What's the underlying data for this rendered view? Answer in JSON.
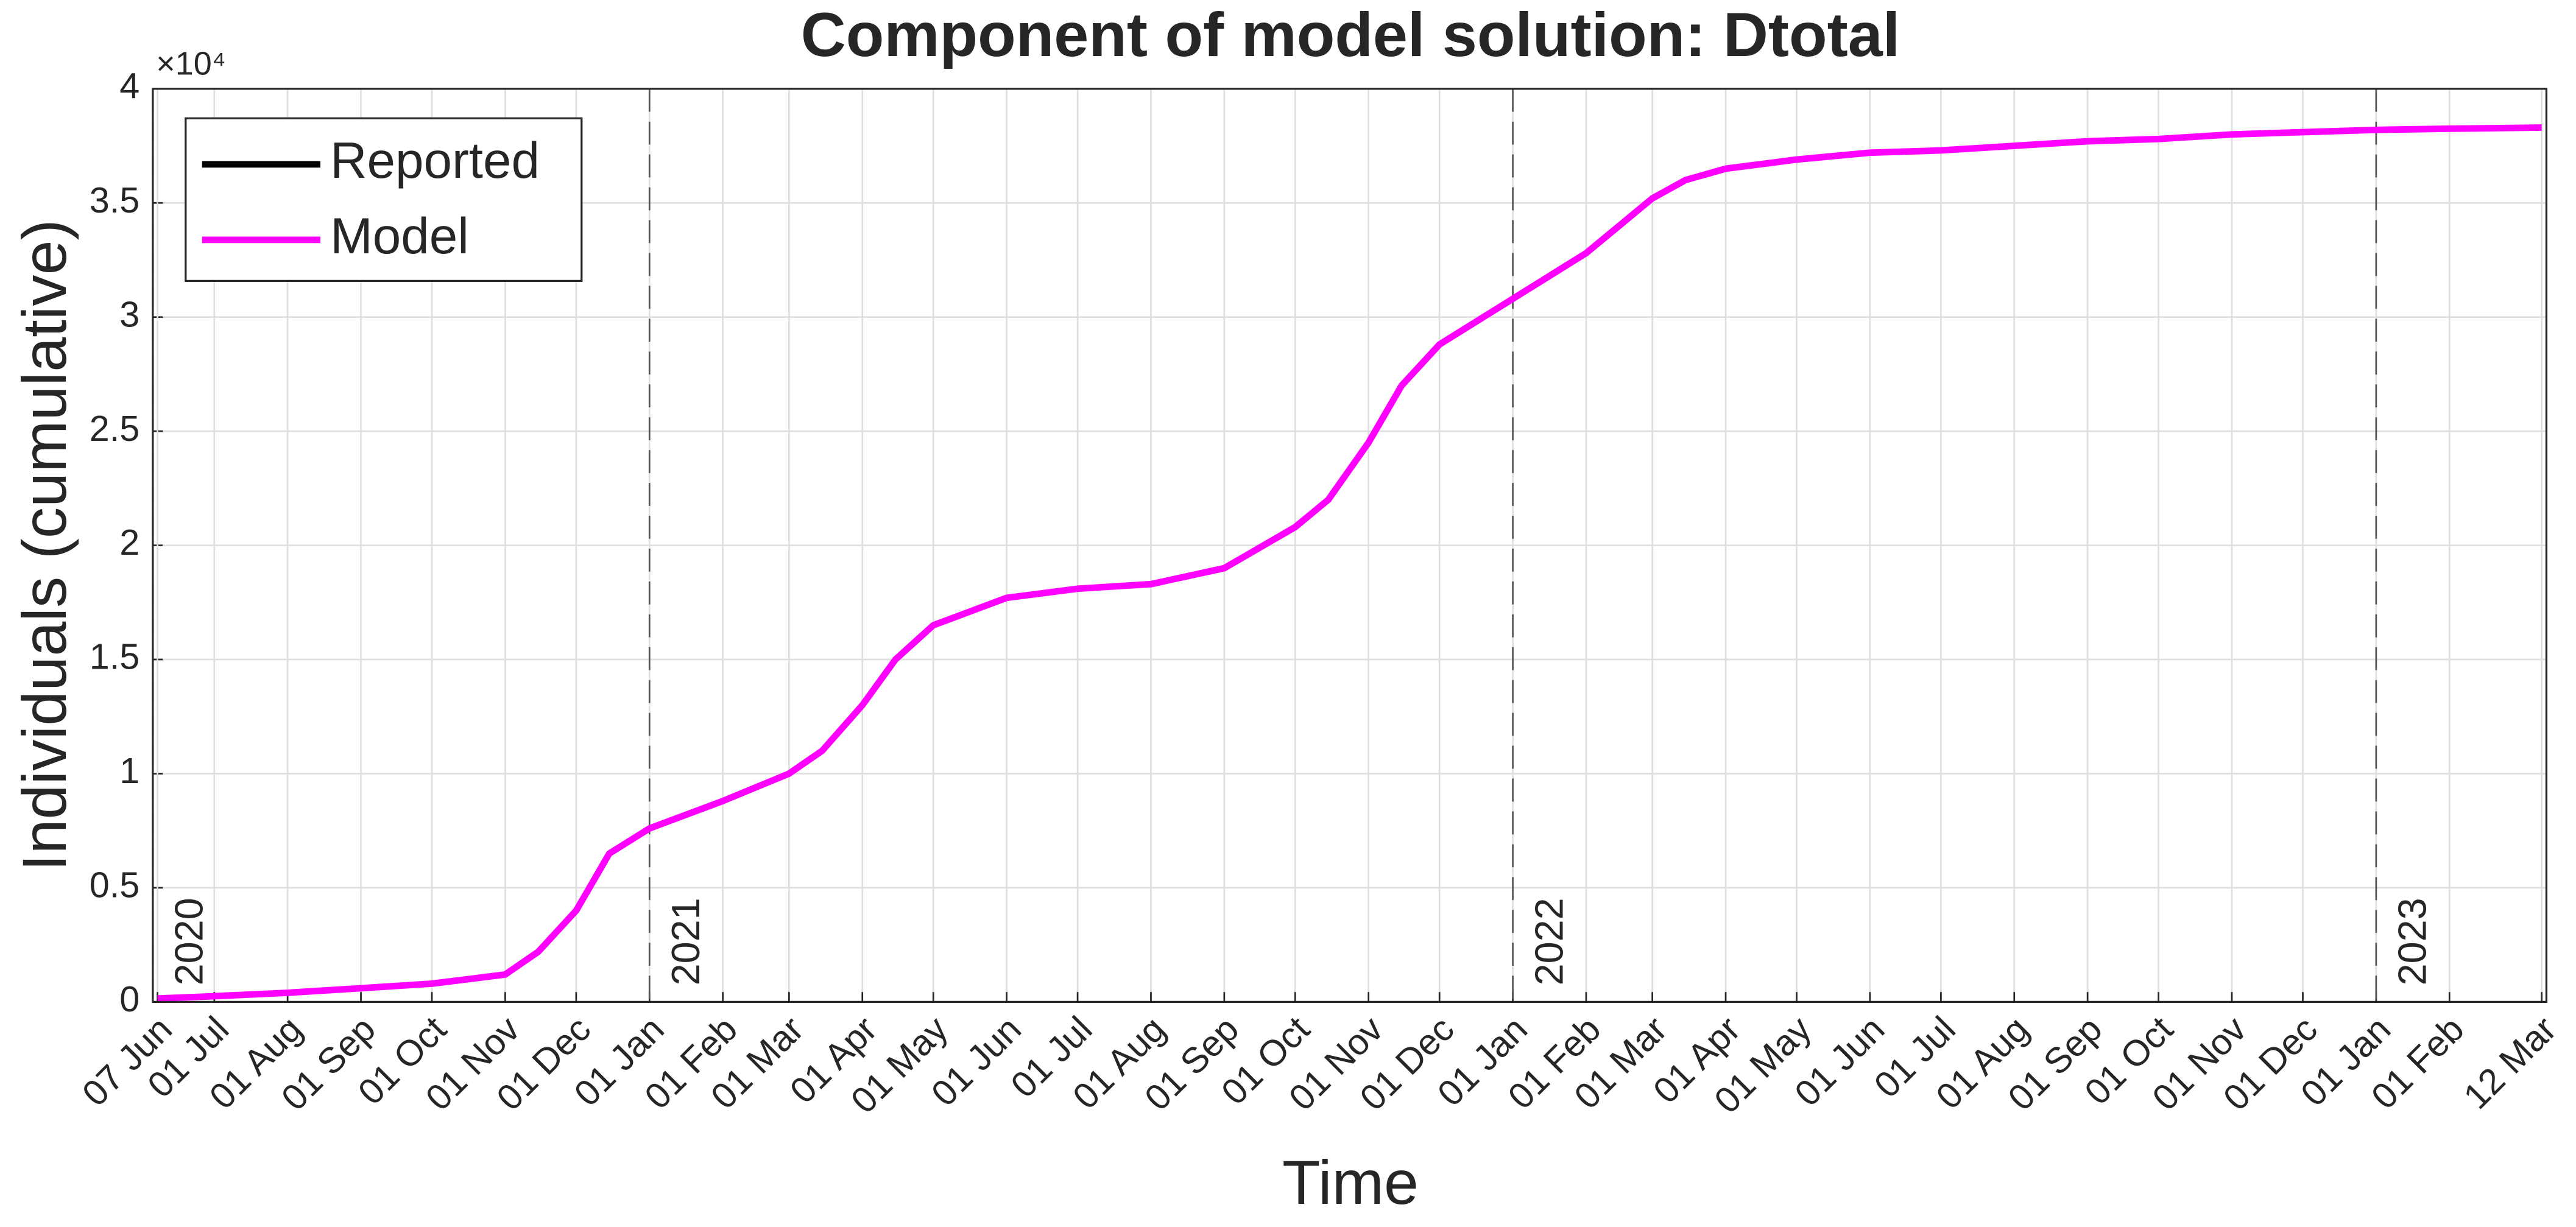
{
  "chart_data": {
    "type": "line",
    "title": "Component of model solution: Dtotal",
    "xlabel": "Time",
    "ylabel": "Individuals (cumulative)",
    "y_exponent_label": "×10⁴",
    "grid": true,
    "legend_position": "upper left",
    "xlim": [
      "2020-06-05",
      "2023-03-14"
    ],
    "ylim": [
      0,
      40000
    ],
    "yticks": [
      0,
      {
        "value": 5000,
        "label": "0.5"
      },
      {
        "value": 10000,
        "label": "1"
      },
      {
        "value": 15000,
        "label": "1.5"
      },
      {
        "value": 20000,
        "label": "2"
      },
      {
        "value": 25000,
        "label": "2.5"
      },
      {
        "value": 30000,
        "label": "3"
      },
      {
        "value": 35000,
        "label": "3.5"
      },
      {
        "value": 40000,
        "label": "4"
      }
    ],
    "xticks": [
      {
        "value": "2020-06-07",
        "label": "07 Jun"
      },
      {
        "value": "2020-07-01",
        "label": "01 Jul"
      },
      {
        "value": "2020-08-01",
        "label": "01 Aug"
      },
      {
        "value": "2020-09-01",
        "label": "01 Sep"
      },
      {
        "value": "2020-10-01",
        "label": "01 Oct"
      },
      {
        "value": "2020-11-01",
        "label": "01 Nov"
      },
      {
        "value": "2020-12-01",
        "label": "01 Dec"
      },
      {
        "value": "2021-01-01",
        "label": "01 Jan"
      },
      {
        "value": "2021-02-01",
        "label": "01 Feb"
      },
      {
        "value": "2021-03-01",
        "label": "01 Mar"
      },
      {
        "value": "2021-04-01",
        "label": "01 Apr"
      },
      {
        "value": "2021-05-01",
        "label": "01 May"
      },
      {
        "value": "2021-06-01",
        "label": "01 Jun"
      },
      {
        "value": "2021-07-01",
        "label": "01 Jul"
      },
      {
        "value": "2021-08-01",
        "label": "01 Aug"
      },
      {
        "value": "2021-09-01",
        "label": "01 Sep"
      },
      {
        "value": "2021-10-01",
        "label": "01 Oct"
      },
      {
        "value": "2021-11-01",
        "label": "01 Nov"
      },
      {
        "value": "2021-12-01",
        "label": "01 Dec"
      },
      {
        "value": "2022-01-01",
        "label": "01 Jan"
      },
      {
        "value": "2022-02-01",
        "label": "01 Feb"
      },
      {
        "value": "2022-03-01",
        "label": "01 Mar"
      },
      {
        "value": "2022-04-01",
        "label": "01 Apr"
      },
      {
        "value": "2022-05-01",
        "label": "01 May"
      },
      {
        "value": "2022-06-01",
        "label": "01 Jun"
      },
      {
        "value": "2022-07-01",
        "label": "01 Jul"
      },
      {
        "value": "2022-08-01",
        "label": "01 Aug"
      },
      {
        "value": "2022-09-01",
        "label": "01 Sep"
      },
      {
        "value": "2022-10-01",
        "label": "01 Oct"
      },
      {
        "value": "2022-11-01",
        "label": "01 Nov"
      },
      {
        "value": "2022-12-01",
        "label": "01 Dec"
      },
      {
        "value": "2023-01-01",
        "label": "01 Jan"
      },
      {
        "value": "2023-02-01",
        "label": "01 Feb"
      },
      {
        "value": "2023-03-12",
        "label": "12 Mar"
      }
    ],
    "year_markers": [
      {
        "x": "2020-06-05",
        "label": "2020"
      },
      {
        "x": "2021-01-01",
        "label": "2021"
      },
      {
        "x": "2022-01-01",
        "label": "2022"
      },
      {
        "x": "2023-01-01",
        "label": "2023"
      }
    ],
    "x": [
      "2020-06-07",
      "2020-07-01",
      "2020-08-01",
      "2020-09-01",
      "2020-10-01",
      "2020-11-01",
      "2020-11-15",
      "2020-12-01",
      "2020-12-15",
      "2021-01-01",
      "2021-02-01",
      "2021-03-01",
      "2021-03-15",
      "2021-04-01",
      "2021-04-15",
      "2021-05-01",
      "2021-06-01",
      "2021-07-01",
      "2021-08-01",
      "2021-09-01",
      "2021-10-01",
      "2021-10-15",
      "2021-11-01",
      "2021-11-15",
      "2021-12-01",
      "2022-01-01",
      "2022-02-01",
      "2022-03-01",
      "2022-03-15",
      "2022-04-01",
      "2022-05-01",
      "2022-06-01",
      "2022-07-01",
      "2022-08-01",
      "2022-09-01",
      "2022-10-01",
      "2022-11-01",
      "2022-12-01",
      "2023-01-01",
      "2023-02-01",
      "2023-03-12"
    ],
    "series": [
      {
        "name": "Reported",
        "color": "#000000",
        "values": [
          null,
          null,
          null,
          null,
          null,
          null,
          null,
          null,
          null,
          null,
          null,
          null,
          null,
          null,
          null,
          null,
          null,
          null,
          null,
          null,
          null,
          null,
          null,
          null,
          null,
          null,
          null,
          null,
          null,
          null,
          null,
          null,
          null,
          null,
          null,
          null,
          null,
          null,
          null,
          null,
          null
        ]
      },
      {
        "name": "Model",
        "color": "#ff00ff",
        "values": [
          150,
          250,
          400,
          600,
          800,
          1200,
          2200,
          4000,
          6500,
          7600,
          8800,
          10000,
          11000,
          13000,
          15000,
          16500,
          17700,
          18100,
          18300,
          19000,
          20800,
          22000,
          24500,
          27000,
          28800,
          30800,
          32800,
          35200,
          36000,
          36500,
          36900,
          37200,
          37300,
          37500,
          37700,
          37800,
          38000,
          38100,
          38200,
          38250,
          38300
        ]
      }
    ]
  }
}
